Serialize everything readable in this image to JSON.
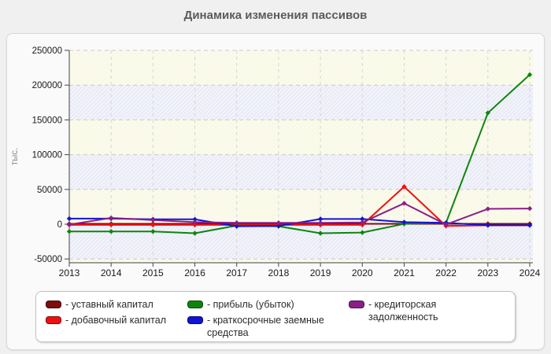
{
  "chart_data": {
    "type": "line",
    "title": "Динамика изменения пассивов",
    "ylabel": "тыс.",
    "x": [
      2013,
      2014,
      2015,
      2016,
      2017,
      2018,
      2019,
      2020,
      2021,
      2022,
      2023,
      2024
    ],
    "ylim": [
      -50000,
      250000
    ],
    "yticks": [
      250000,
      200000,
      150000,
      100000,
      50000,
      0,
      -50000
    ],
    "grid": "dashed",
    "legend_position": "bottom",
    "plot_band_colors": [
      "#f8f8e4",
      "#e9ebf6"
    ],
    "hatch": "diagonal-white",
    "series": [
      {
        "name": "уставный капитал",
        "color": "#7e0c0c",
        "marker": "diamond",
        "values": [
          500,
          500,
          500,
          500,
          500,
          500,
          500,
          500,
          500,
          500,
          500,
          500
        ]
      },
      {
        "name": "добавочный капитал",
        "color": "#ee1111",
        "marker": "diamond",
        "values": [
          -1000,
          -1000,
          -1000,
          -1000,
          -1000,
          -1000,
          -1000,
          -1000,
          54000,
          -2500,
          -1500,
          -1500
        ]
      },
      {
        "name": "прибыль (убыток)",
        "color": "#0d850d",
        "marker": "diamond",
        "values": [
          -10500,
          -10500,
          -10500,
          -13000,
          -2000,
          -3000,
          -13000,
          -12000,
          500,
          2000,
          160000,
          215000
        ]
      },
      {
        "name": "краткосрочные заемные средства",
        "color": "#1313d6",
        "marker": "diamond",
        "values": [
          8000,
          8000,
          7000,
          7000,
          -3000,
          -2500,
          7500,
          7500,
          3000,
          2000,
          -1500,
          -1500
        ]
      },
      {
        "name": "кредиторская задолженность",
        "color": "#8a1f8a",
        "marker": "diamond",
        "values": [
          -500,
          9000,
          6000,
          3000,
          2000,
          2000,
          2000,
          2500,
          30000,
          -500,
          22000,
          22500
        ]
      }
    ]
  },
  "legend": {
    "items": [
      {
        "label": "- уставный капитал",
        "series": 0
      },
      {
        "label": "- добавочный капитал",
        "series": 1
      },
      {
        "label": "- прибыль (убыток)",
        "series": 2
      },
      {
        "label": "- краткосрочные заемные средства",
        "series": 3
      },
      {
        "label": "- кредиторская задолженность",
        "series": 4
      }
    ]
  }
}
